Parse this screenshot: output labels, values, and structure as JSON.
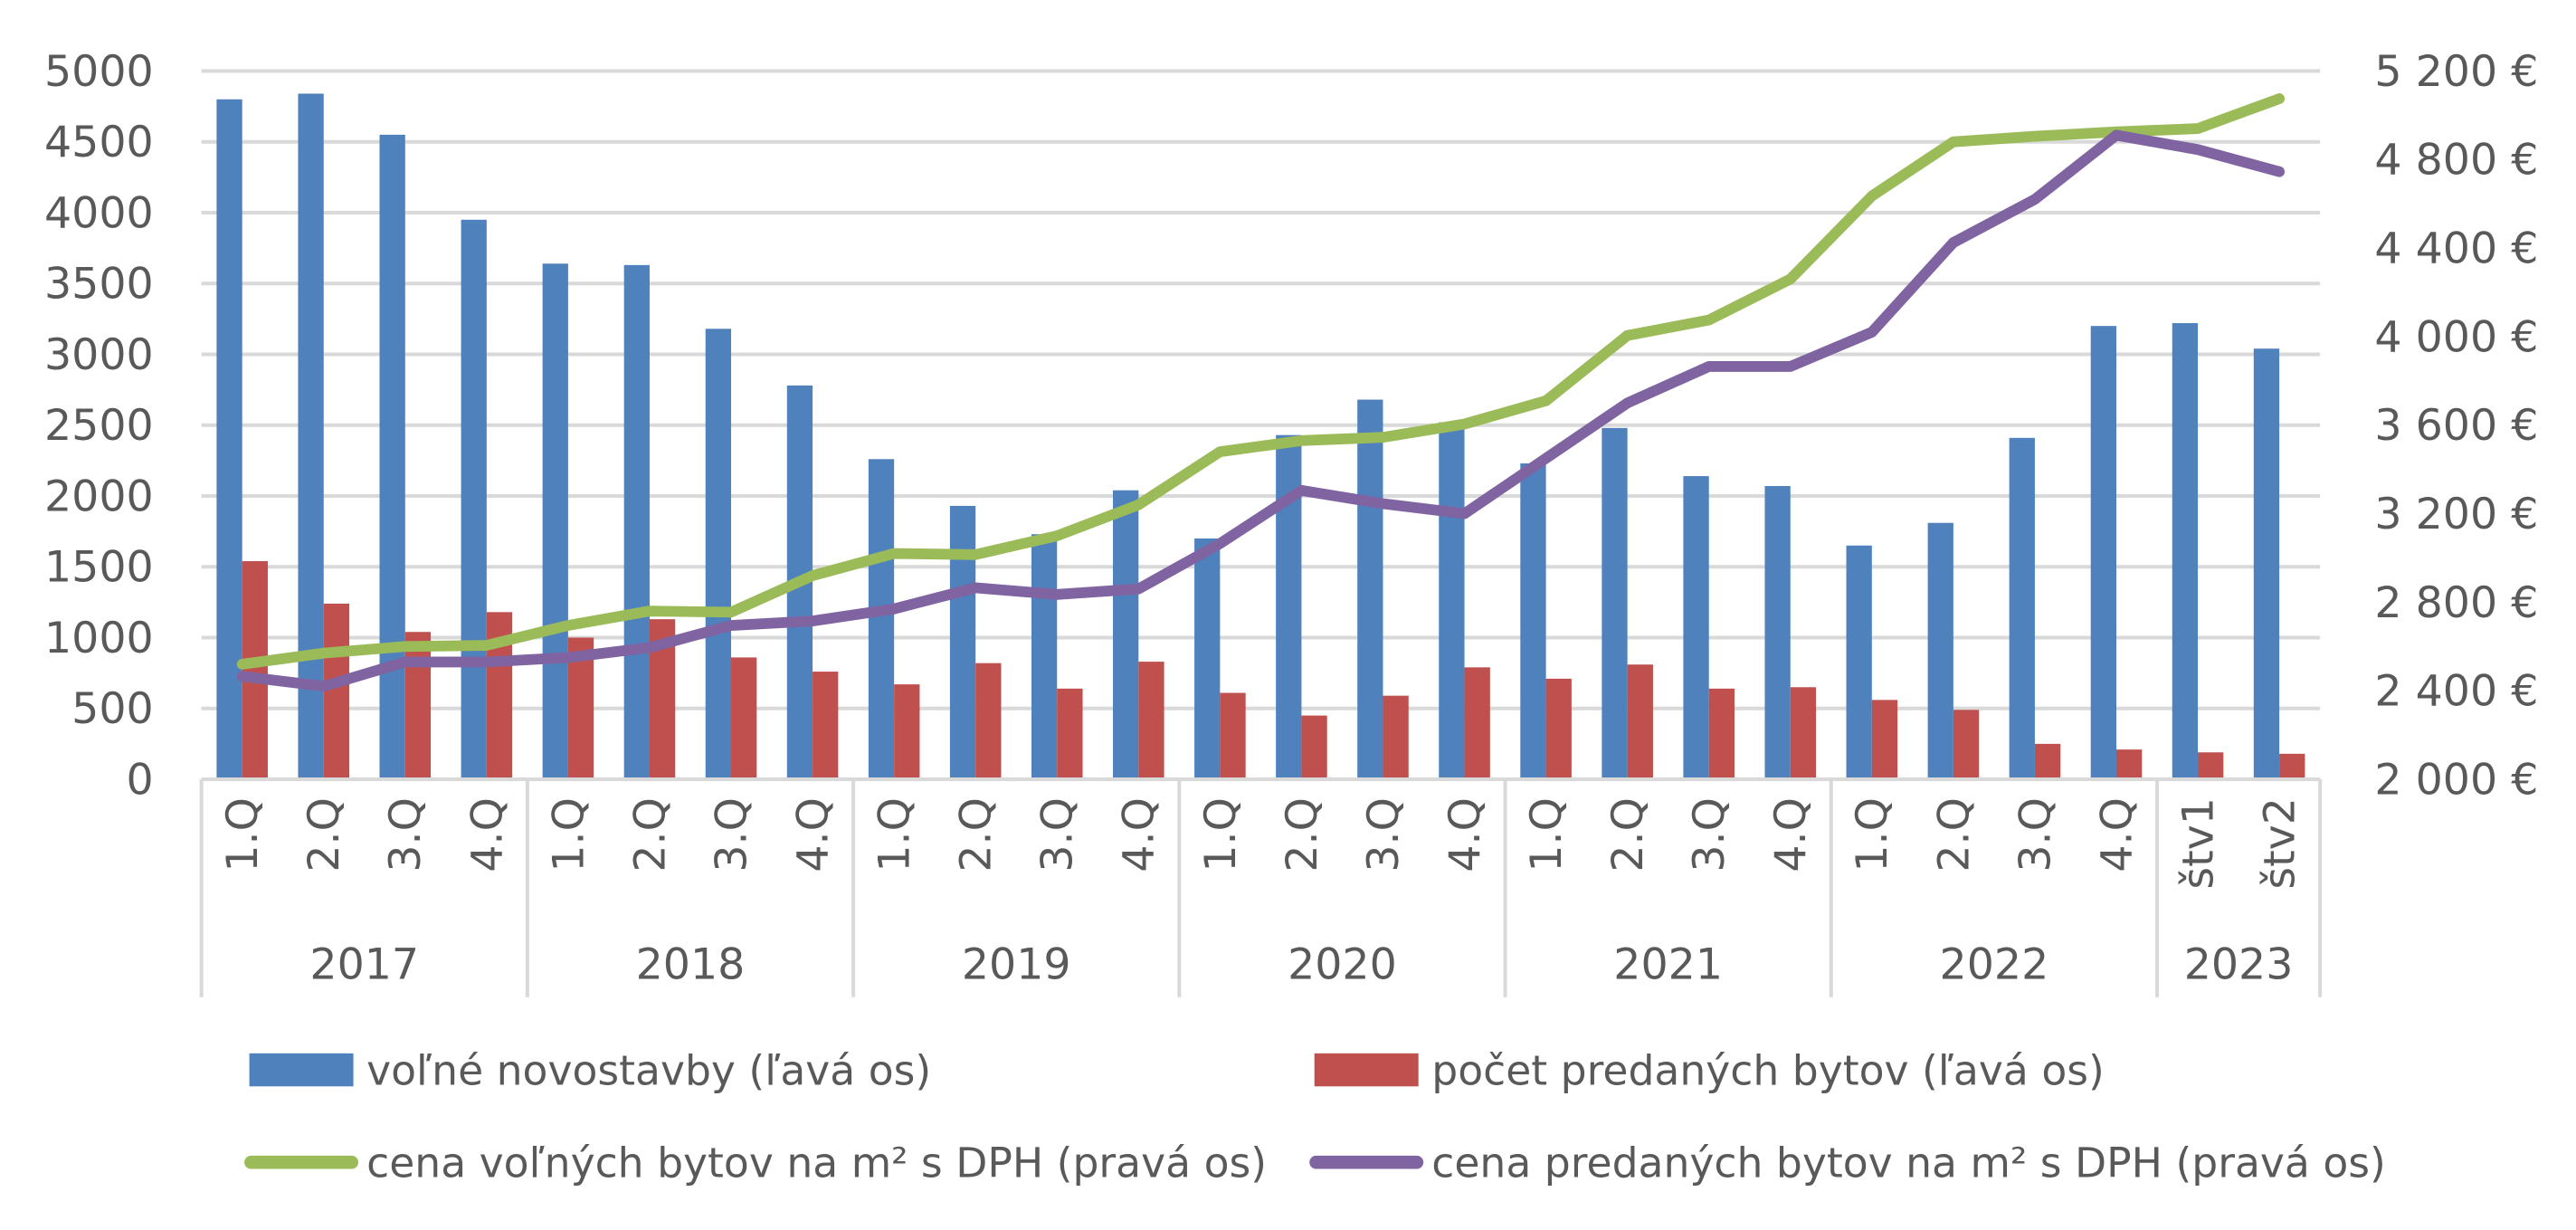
{
  "chart_data": {
    "type": "bar",
    "title": "",
    "xlabel": "",
    "ylabel": "",
    "ylim": [
      0,
      5000
    ],
    "y2lim": [
      2000,
      5200
    ],
    "grid": true,
    "legend_position": "bottom",
    "left_ticks": [
      "0",
      "500",
      "1000",
      "1500",
      "2000",
      "2500",
      "3000",
      "3500",
      "4000",
      "4500",
      "5000"
    ],
    "left_tick_values": [
      0,
      500,
      1000,
      1500,
      2000,
      2500,
      3000,
      3500,
      4000,
      4500,
      5000
    ],
    "right_ticks": [
      "2 000 €",
      "2 400 €",
      "2 800 €",
      "3 200 €",
      "3 600 €",
      "4 000 €",
      "4 400 €",
      "4 800 €",
      "5 200 €"
    ],
    "right_tick_values": [
      2000,
      2400,
      2800,
      3200,
      3600,
      4000,
      4400,
      4800,
      5200
    ],
    "groups": [
      {
        "label": "2017",
        "categories": [
          "1.Q",
          "2.Q",
          "3.Q",
          "4.Q"
        ]
      },
      {
        "label": "2018",
        "categories": [
          "1.Q",
          "2.Q",
          "3.Q",
          "4.Q"
        ]
      },
      {
        "label": "2019",
        "categories": [
          "1.Q",
          "2.Q",
          "3.Q",
          "4.Q"
        ]
      },
      {
        "label": "2020",
        "categories": [
          "1.Q",
          "2.Q",
          "3.Q",
          "4.Q"
        ]
      },
      {
        "label": "2021",
        "categories": [
          "1.Q",
          "2.Q",
          "3.Q",
          "4.Q"
        ]
      },
      {
        "label": "2022",
        "categories": [
          "1.Q",
          "2.Q",
          "3.Q",
          "4.Q"
        ]
      },
      {
        "label": "2023",
        "categories": [
          "štv1",
          "štv2"
        ]
      }
    ],
    "series": [
      {
        "name": "voľné novostavby (ľavá os)",
        "type": "bar",
        "axis": "left",
        "color": "#4F81BD",
        "values": [
          4800,
          4840,
          4550,
          3950,
          3640,
          3630,
          3180,
          2780,
          2260,
          1930,
          1730,
          2040,
          1700,
          2430,
          2680,
          2520,
          2230,
          2480,
          2140,
          2070,
          1650,
          1810,
          2410,
          3200,
          3220,
          3040
        ]
      },
      {
        "name": "počet predaných bytov (ľavá os)",
        "type": "bar",
        "axis": "left",
        "color": "#C0504D",
        "values": [
          1540,
          1240,
          1040,
          1180,
          1000,
          1130,
          860,
          760,
          670,
          820,
          640,
          830,
          610,
          450,
          590,
          790,
          710,
          810,
          640,
          650,
          560,
          490,
          250,
          210,
          190,
          180
        ]
      },
      {
        "name": "cena voľných bytov na m² s DPH (pravá os)",
        "type": "line",
        "axis": "right",
        "color": "#9BBB59",
        "values": [
          2520,
          2570,
          2600,
          2605,
          2695,
          2760,
          2755,
          2920,
          3020,
          3015,
          3100,
          3240,
          3480,
          3530,
          3545,
          3605,
          3710,
          4005,
          4075,
          4260,
          4635,
          4880,
          4905,
          4925,
          4940,
          5075
        ]
      },
      {
        "name": "cena predaných bytov na m² s  DPH (pravá os)",
        "type": "line",
        "axis": "right",
        "color": "#8064A2",
        "values": [
          2465,
          2420,
          2530,
          2530,
          2550,
          2595,
          2695,
          2715,
          2770,
          2865,
          2835,
          2860,
          3065,
          3305,
          3245,
          3200,
          3450,
          3700,
          3865,
          3865,
          4020,
          4425,
          4620,
          4910,
          4845,
          4745
        ]
      }
    ]
  }
}
